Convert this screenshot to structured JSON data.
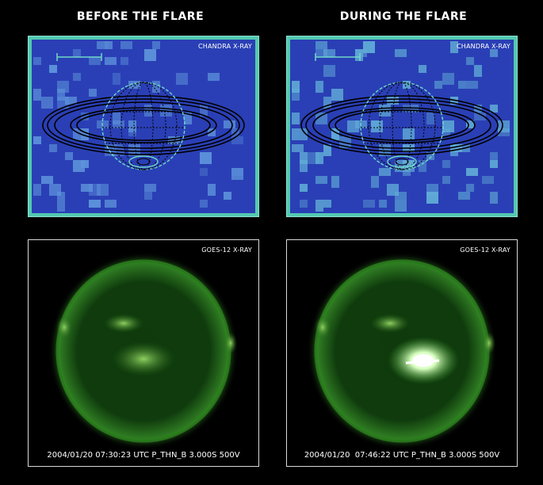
{
  "headings": {
    "before": "BEFORE THE FLARE",
    "during": "DURING THE FLARE"
  },
  "panels": {
    "chandra_before": {
      "label": "CHANDRA X-RAY"
    },
    "chandra_during": {
      "label": "CHANDRA X-RAY"
    },
    "goes_before": {
      "label": "GOES-12 X-RAY",
      "caption": "2004/01/20 07:30:23 UTC P_THN_B 3.000S 500V"
    },
    "goes_during": {
      "label": "GOES-12 X-RAY",
      "caption": "2004/01/20  07:46:22 UTC P_THN_B 3.000S 500V"
    }
  },
  "colors": {
    "chandra_background": "#2a3fb5",
    "chandra_frame": "#52c9b0",
    "sun_glow": "#2f8a1f",
    "flare": "#ffffff"
  }
}
